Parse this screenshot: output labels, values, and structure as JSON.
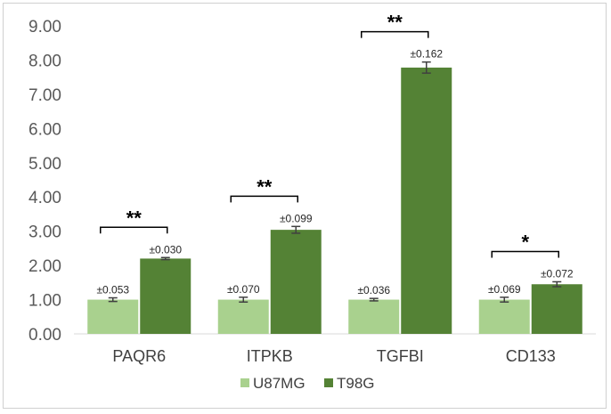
{
  "chart_data": {
    "type": "bar",
    "title": "",
    "xlabel": "",
    "ylabel": "",
    "categories": [
      "PAQR6",
      "ITPKB",
      "TGFBI",
      "CD133"
    ],
    "series": [
      {
        "name": "U87MG",
        "color": "#a9d18e",
        "values": [
          1.0,
          1.0,
          1.0,
          1.0
        ],
        "errors": [
          0.053,
          0.07,
          0.036,
          0.069
        ],
        "error_labels": [
          "±0.053",
          "±0.070",
          "±0.036",
          "±0.069"
        ]
      },
      {
        "name": "T98G",
        "color": "#548235",
        "values": [
          2.2,
          3.04,
          7.78,
          1.45
        ],
        "errors": [
          0.03,
          0.099,
          0.162,
          0.072
        ],
        "error_labels": [
          "±0.030",
          "±0.099",
          "±0.162",
          "±0.072"
        ]
      }
    ],
    "significance": [
      "**",
      "**",
      "**",
      "*"
    ],
    "ylim": [
      0,
      9
    ],
    "yticks": [
      "0.00",
      "1.00",
      "2.00",
      "3.00",
      "4.00",
      "5.00",
      "6.00",
      "7.00",
      "8.00",
      "9.00"
    ],
    "grid": false,
    "legend_position": "bottom"
  }
}
